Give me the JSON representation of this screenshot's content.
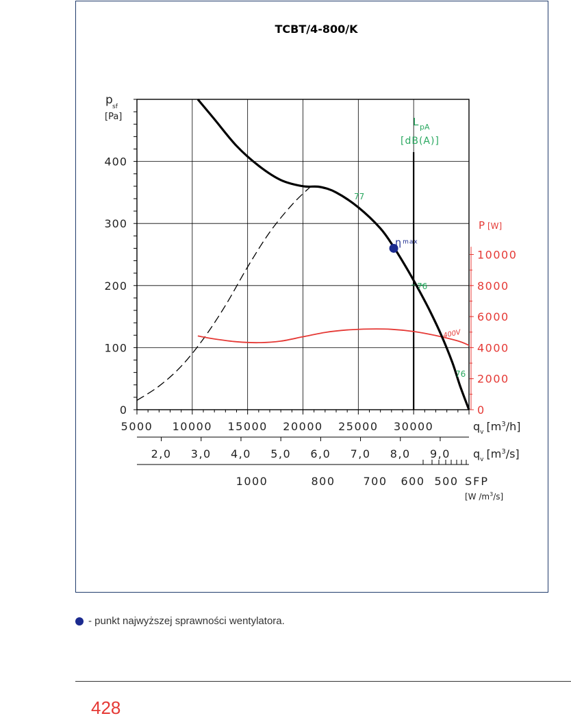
{
  "colors": {
    "curve": "#000000",
    "power": "#e53935",
    "sound": "#2aa860",
    "efficiency": "#1b2a8f",
    "frame": "#1f3a6b"
  },
  "chart_data": {
    "type": "line",
    "title": "TCBT/4-800/K",
    "ylabel_main": "p",
    "ylabel_sub": "sf",
    "ylabel_unit": "[Pa]",
    "ylim": [
      0,
      500
    ],
    "yticks": [
      0,
      100,
      200,
      300,
      400
    ],
    "xlim": [
      5000,
      35000
    ],
    "xlabel": "q",
    "xlabel_sub": "v",
    "xlabel_unit_m3h": "[m",
    "xlabel_unit_m3h_sup": "3",
    "xlabel_unit_m3h_end": "/h]",
    "xlabel_unit_m3s": "[m",
    "xlabel_unit_m3s_sup": "3",
    "xlabel_unit_m3s_end": "/s]",
    "xticks_m3h": [
      5000,
      10000,
      15000,
      20000,
      25000,
      30000
    ],
    "xtick_labels_m3h": [
      "5000",
      "10000",
      "15000",
      "20000",
      "25000",
      "30000"
    ],
    "xticks_m3s": [
      2.0,
      3.0,
      4.0,
      5.0,
      6.0,
      7.0,
      8.0,
      9.0
    ],
    "xtick_labels_m3s": [
      "2,0",
      "3,0",
      "4,0",
      "5,0",
      "6,0",
      "7,0",
      "8,0",
      "9,0"
    ],
    "sfp_label": "SFP",
    "sfp_unit": "[W /m",
    "sfp_unit_sup": "3",
    "sfp_unit_end": "/s]",
    "sfp_ticks": [
      1000,
      800,
      700,
      600,
      500
    ],
    "sfp_tick_labels": [
      "1000",
      "800",
      "700",
      "600",
      "500"
    ],
    "power_axis": {
      "label": "P",
      "unit": "[W]",
      "ylim": [
        0,
        20000
      ],
      "ticks": [
        0,
        2000,
        4000,
        6000,
        8000,
        10000
      ],
      "tick_labels": [
        "0",
        "2000",
        "4000",
        "6000",
        "8000",
        "10000"
      ]
    },
    "sound_label": "L",
    "sound_label_sub": "pA",
    "sound_unit": "[dB(A)]",
    "sound_values": [
      "77",
      "76",
      "76"
    ],
    "efficiency_label": "η",
    "efficiency_label_sup": "max",
    "efficiency_point": {
      "x": 28200,
      "y": 260
    },
    "power_series_label": "400V",
    "series": [
      {
        "name": "pressure",
        "points": [
          [
            10500,
            500
          ],
          [
            12000,
            468
          ],
          [
            14000,
            425
          ],
          [
            16000,
            393
          ],
          [
            18000,
            370
          ],
          [
            20000,
            360
          ],
          [
            21500,
            359
          ],
          [
            23000,
            350
          ],
          [
            25000,
            326
          ],
          [
            27000,
            292
          ],
          [
            28200,
            262
          ],
          [
            29500,
            224
          ],
          [
            30500,
            192
          ],
          [
            31500,
            158
          ],
          [
            32500,
            120
          ],
          [
            33500,
            76
          ],
          [
            34200,
            38
          ],
          [
            35000,
            0
          ]
        ]
      },
      {
        "name": "system",
        "points": [
          [
            5000,
            15
          ],
          [
            7000,
            38
          ],
          [
            9000,
            70
          ],
          [
            11000,
            114
          ],
          [
            13000,
            168
          ],
          [
            15000,
            230
          ],
          [
            17000,
            286
          ],
          [
            19000,
            330
          ],
          [
            20600,
            358
          ]
        ]
      },
      {
        "name": "power",
        "points": [
          [
            10500,
            4750
          ],
          [
            12000,
            4560
          ],
          [
            14000,
            4380
          ],
          [
            16000,
            4320
          ],
          [
            18000,
            4420
          ],
          [
            20000,
            4700
          ],
          [
            22000,
            4980
          ],
          [
            24000,
            5140
          ],
          [
            26000,
            5200
          ],
          [
            28000,
            5180
          ],
          [
            30000,
            5040
          ],
          [
            32000,
            4780
          ],
          [
            34000,
            4430
          ],
          [
            35000,
            4150
          ]
        ]
      }
    ]
  },
  "footnote": "- punkt najwyższej sprawności wentylatora.",
  "page_number": "428"
}
